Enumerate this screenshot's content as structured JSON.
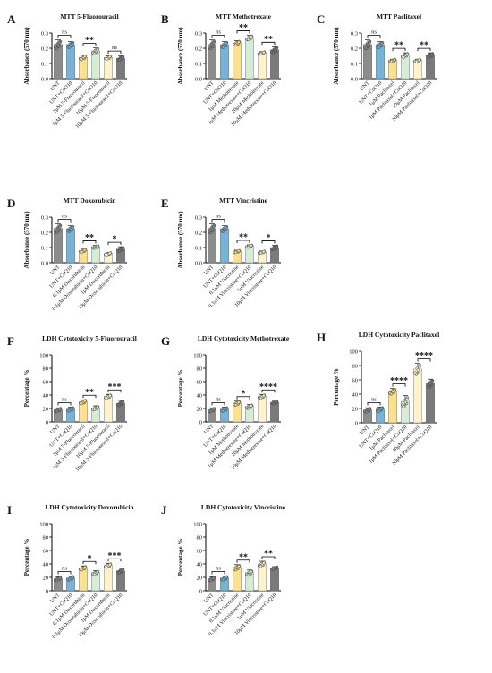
{
  "colors": {
    "gray": "#8c8c8c",
    "blue": "#76b3d6",
    "yellow": "#fbe08f",
    "green": "#d6ecd6",
    "cream": "#fdf3cc",
    "darkgray": "#7a7a7a"
  },
  "chart_data": [
    {
      "type": "bar",
      "letter": "A",
      "title": "MTT 5-Fluorouracil",
      "ylabel": "Absorbance (570 nm)",
      "ylim": [
        0,
        0.3
      ],
      "yticks": [
        0.0,
        0.1,
        0.2,
        0.3
      ],
      "categories": [
        "UNT",
        "UNT+CoQ10",
        "1μM 5-Fluorouracil",
        "1μM 5-Fluorouracil+CoQ10",
        "10μM 5-Fluorouracil",
        "10μM 5-Fluorouracil+CoQ10"
      ],
      "values": [
        0.225,
        0.224,
        0.14,
        0.182,
        0.14,
        0.135
      ],
      "errors": [
        0.03,
        0.02,
        0.015,
        0.02,
        0.012,
        0.015
      ],
      "fills": [
        "gray",
        "blue",
        "yellow",
        "green",
        "cream",
        "darkgray"
      ],
      "comparisons": [
        {
          "from": 0,
          "to": 1,
          "label": "ns"
        },
        {
          "from": 2,
          "to": 3,
          "label": "**"
        },
        {
          "from": 4,
          "to": 5,
          "label": "ns"
        }
      ]
    },
    {
      "type": "bar",
      "letter": "B",
      "title": "MTT Methotrexate",
      "ylabel": "Absorbance (570 nm)",
      "ylim": [
        0,
        0.3
      ],
      "yticks": [
        0.0,
        0.1,
        0.2,
        0.3
      ],
      "categories": [
        "UNT",
        "UNT+CoQ10",
        "1μM Methotrexate",
        "1μM Methotrexate+CoQ10",
        "10μM Methotrexate",
        "10μM Methotrexate+CoQ10"
      ],
      "values": [
        0.225,
        0.224,
        0.235,
        0.27,
        0.17,
        0.19
      ],
      "errors": [
        0.03,
        0.02,
        0.015,
        0.015,
        0.008,
        0.02
      ],
      "fills": [
        "gray",
        "blue",
        "yellow",
        "green",
        "cream",
        "darkgray"
      ],
      "comparisons": [
        {
          "from": 0,
          "to": 1,
          "label": "ns"
        },
        {
          "from": 2,
          "to": 3,
          "label": "**"
        },
        {
          "from": 4,
          "to": 5,
          "label": "**"
        }
      ]
    },
    {
      "type": "bar",
      "letter": "C",
      "title": "MTT Paclitaxel",
      "ylabel": "Absorbance (570 nm)",
      "ylim": [
        0,
        0.3
      ],
      "yticks": [
        0.0,
        0.1,
        0.2,
        0.3
      ],
      "categories": [
        "UNT",
        "UNT+CoQ10",
        "1μM Paclitaxel",
        "1μM Paclitaxel+CoQ10",
        "10μM Paclitaxel",
        "10μM Paclitaxel+CoQ10"
      ],
      "values": [
        0.225,
        0.224,
        0.12,
        0.155,
        0.12,
        0.155
      ],
      "errors": [
        0.03,
        0.02,
        0.008,
        0.015,
        0.008,
        0.015
      ],
      "fills": [
        "gray",
        "blue",
        "yellow",
        "green",
        "cream",
        "darkgray"
      ],
      "comparisons": [
        {
          "from": 0,
          "to": 1,
          "label": "ns"
        },
        {
          "from": 2,
          "to": 3,
          "label": "**"
        },
        {
          "from": 4,
          "to": 5,
          "label": "**"
        }
      ]
    },
    {
      "type": "bar",
      "letter": "D",
      "title": "MTT Doxorubicin",
      "ylabel": "Absorbance (570 nm)",
      "ylim": [
        0,
        0.3
      ],
      "yticks": [
        0.0,
        0.1,
        0.2,
        0.3
      ],
      "categories": [
        "UNT",
        "UNT+CoQ10",
        "0.1μM Doxorubicin",
        "0.1μM Doxorubicin+CoQ10",
        "1μM Doxorubicin",
        "10μM Doxorubicin+CoQ10"
      ],
      "values": [
        0.225,
        0.224,
        0.08,
        0.105,
        0.06,
        0.09
      ],
      "errors": [
        0.03,
        0.02,
        0.01,
        0.01,
        0.008,
        0.015
      ],
      "fills": [
        "gray",
        "blue",
        "yellow",
        "green",
        "cream",
        "darkgray"
      ],
      "comparisons": [
        {
          "from": 0,
          "to": 1,
          "label": "ns"
        },
        {
          "from": 2,
          "to": 3,
          "label": "**"
        },
        {
          "from": 4,
          "to": 5,
          "label": "*"
        }
      ]
    },
    {
      "type": "bar",
      "letter": "E",
      "title": "MTT Vincristine",
      "ylabel": "Absorbance (570 nm)",
      "ylim": [
        0,
        0.3
      ],
      "yticks": [
        0.0,
        0.1,
        0.2,
        0.3
      ],
      "categories": [
        "UNT",
        "UNT+CoQ10",
        "0.1μM Vincristine",
        "0.1μM Vincristine+CoQ10",
        "1μM Vincristine",
        "10μM Vincristine+CoQ10"
      ],
      "values": [
        0.225,
        0.224,
        0.075,
        0.11,
        0.07,
        0.1
      ],
      "errors": [
        0.03,
        0.02,
        0.008,
        0.008,
        0.008,
        0.015
      ],
      "fills": [
        "gray",
        "blue",
        "yellow",
        "green",
        "cream",
        "darkgray"
      ],
      "comparisons": [
        {
          "from": 0,
          "to": 1,
          "label": "ns"
        },
        {
          "from": 2,
          "to": 3,
          "label": "**"
        },
        {
          "from": 4,
          "to": 5,
          "label": "*"
        }
      ]
    },
    {
      "type": "bar",
      "letter": "F",
      "title": "LDH Cytotoxicity 5-Fluorouracil",
      "ylabel": "Percentage %",
      "ylim": [
        0,
        100
      ],
      "yticks": [
        0,
        20,
        40,
        60,
        80,
        100
      ],
      "categories": [
        "UNT",
        "UNT+CoQ10",
        "1μM 5-Fluorouracil",
        "1μM 5-Fluorouracil+CoQ10",
        "10μM 5-Fluorouracil",
        "10μM 5-Fluorouracil+CoQ10"
      ],
      "values": [
        18,
        19,
        30,
        21,
        38,
        28
      ],
      "errors": [
        3,
        3,
        3,
        3,
        3,
        4
      ],
      "fills": [
        "gray",
        "blue",
        "yellow",
        "green",
        "cream",
        "darkgray"
      ],
      "comparisons": [
        {
          "from": 0,
          "to": 1,
          "label": "ns"
        },
        {
          "from": 2,
          "to": 3,
          "label": "**"
        },
        {
          "from": 4,
          "to": 5,
          "label": "***"
        }
      ]
    },
    {
      "type": "bar",
      "letter": "G",
      "title": "LDH Cytotoxicity Methotrexate",
      "ylabel": "Percentage %",
      "ylim": [
        0,
        100
      ],
      "yticks": [
        0,
        20,
        40,
        60,
        80,
        100
      ],
      "categories": [
        "UNT",
        "UNT+CoQ10",
        "1μM Methotrexate",
        "1μM Methotrexate+CoQ10",
        "10μM Methotrexate",
        "10μM Methotrexate+CoQ10"
      ],
      "values": [
        18,
        19,
        28,
        23,
        38,
        29
      ],
      "errors": [
        3,
        3,
        3,
        3,
        3,
        2
      ],
      "fills": [
        "gray",
        "blue",
        "yellow",
        "green",
        "cream",
        "darkgray"
      ],
      "comparisons": [
        {
          "from": 0,
          "to": 1,
          "label": "ns"
        },
        {
          "from": 2,
          "to": 3,
          "label": "*"
        },
        {
          "from": 4,
          "to": 5,
          "label": "****"
        }
      ]
    },
    {
      "type": "bar",
      "letter": "H",
      "title": "LDH Cytotoxicity Paclitaxel",
      "ylabel": "Percentage %",
      "ylim": [
        0,
        100
      ],
      "yticks": [
        0,
        20,
        40,
        60,
        80,
        100
      ],
      "categories": [
        "UNT",
        "UNT+CoQ10",
        "1μM Paclitaxel",
        "1μM Paclitaxel+CoQ10",
        "10μM Paclitaxel",
        "10μM Paclitaxel+CoQ10"
      ],
      "values": [
        18,
        19,
        44,
        30,
        75,
        55
      ],
      "errors": [
        3,
        3,
        4,
        8,
        8,
        6
      ],
      "fills": [
        "gray",
        "blue",
        "yellow",
        "green",
        "cream",
        "darkgray"
      ],
      "comparisons": [
        {
          "from": 0,
          "to": 1,
          "label": "ns"
        },
        {
          "from": 2,
          "to": 3,
          "label": "****"
        },
        {
          "from": 4,
          "to": 5,
          "label": "****"
        }
      ]
    },
    {
      "type": "bar",
      "letter": "I",
      "title": "LDH Cytotoxicity Doxorubicin",
      "ylabel": "Percentage %",
      "ylim": [
        0,
        100
      ],
      "yticks": [
        0,
        20,
        40,
        60,
        80,
        100
      ],
      "categories": [
        "UNT",
        "UNT+CoQ10",
        "0.1μM Doxorubicin",
        "0.1μM Doxorubicin+CoQ10",
        "1μM Doxorubicin",
        "10μM Doxorubicin+CoQ10"
      ],
      "values": [
        18,
        19,
        34,
        27,
        38,
        30
      ],
      "errors": [
        3,
        3,
        3,
        3,
        3,
        4
      ],
      "fills": [
        "gray",
        "blue",
        "yellow",
        "green",
        "cream",
        "darkgray"
      ],
      "comparisons": [
        {
          "from": 0,
          "to": 1,
          "label": "ns"
        },
        {
          "from": 2,
          "to": 3,
          "label": "*"
        },
        {
          "from": 4,
          "to": 5,
          "label": "***"
        }
      ]
    },
    {
      "type": "bar",
      "letter": "J",
      "title": "LDH Cytotoxicity Vincristine",
      "ylabel": "Percentage %",
      "ylim": [
        0,
        100
      ],
      "yticks": [
        0,
        20,
        40,
        60,
        80,
        100
      ],
      "categories": [
        "UNT",
        "UNT+CoQ10",
        "0.1μM Vincristine",
        "0.1μM Vincristine+CoQ10",
        "1μM Vincristine",
        "10μM Vincristine+CoQ10"
      ],
      "values": [
        18,
        19,
        35,
        27,
        40,
        34
      ],
      "errors": [
        3,
        3,
        4,
        4,
        4,
        2
      ],
      "fills": [
        "gray",
        "blue",
        "yellow",
        "green",
        "cream",
        "darkgray"
      ],
      "comparisons": [
        {
          "from": 0,
          "to": 1,
          "label": "ns"
        },
        {
          "from": 2,
          "to": 3,
          "label": "**"
        },
        {
          "from": 4,
          "to": 5,
          "label": "**"
        }
      ]
    }
  ]
}
